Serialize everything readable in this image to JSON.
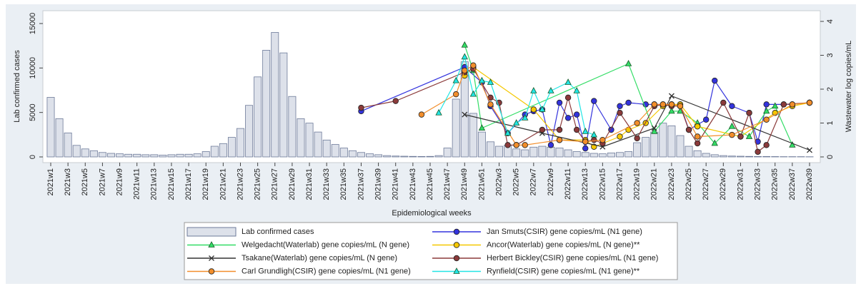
{
  "chart_data": {
    "type": "bar",
    "x_label": "Epidemiological weeks",
    "y_label": "Lab confirmed cases",
    "y2_label": "Wastewater log copies/mL",
    "ylim": [
      0,
      15000
    ],
    "yticks": [
      0,
      5000,
      10000,
      15000
    ],
    "y2lim": [
      0,
      4
    ],
    "y2ticks": [
      0,
      1,
      2,
      3,
      4
    ],
    "categories": [
      "2021w1",
      null,
      "2021w3",
      null,
      "2021w5",
      null,
      "2021w7",
      null,
      "2021w9",
      null,
      "2021w11",
      null,
      "2021w13",
      null,
      "2021w15",
      null,
      "2021w17",
      null,
      "2021w19",
      null,
      "2021w21",
      null,
      "2021w23",
      null,
      "2021w25",
      null,
      "2021w27",
      null,
      "2021w29",
      null,
      "2021w31",
      null,
      "2021w33",
      null,
      "2021w35",
      null,
      "2021w37",
      null,
      "2021w39",
      null,
      "2021w41",
      null,
      "2021w43",
      null,
      "2021w45",
      null,
      "2021w47",
      null,
      "2021w49",
      null,
      "2021w51",
      null,
      "2022w3",
      null,
      "2022w5",
      null,
      "2022w7",
      null,
      "2022w9",
      null,
      "2022w11",
      null,
      "2022w13",
      null,
      "2022w15",
      null,
      "2022w17",
      null,
      "2022w19",
      null,
      "2022w21",
      null,
      "2022w23",
      null,
      "2022w25",
      null,
      "2022w27",
      null,
      "2022w29",
      null,
      "2022w31",
      null,
      "2022w33",
      null,
      "2022w35",
      null,
      "2022w37",
      null,
      "2022w39"
    ],
    "series": [
      {
        "name": "Lab confirmed cases",
        "type": "bar",
        "color": "#dde1ea",
        "values": [
          6700,
          4300,
          2700,
          1300,
          900,
          700,
          500,
          400,
          350,
          300,
          300,
          250,
          250,
          200,
          250,
          300,
          300,
          350,
          600,
          1200,
          1500,
          2200,
          3200,
          5800,
          9000,
          12000,
          14000,
          11700,
          6800,
          4300,
          3800,
          2800,
          1900,
          1400,
          1000,
          700,
          500,
          350,
          250,
          150,
          100,
          80,
          60,
          50,
          60,
          150,
          1000,
          6500,
          10700,
          4900,
          2800,
          1700,
          1200,
          1300,
          900,
          800,
          1100,
          1200,
          1100,
          1000,
          800,
          600,
          500,
          400,
          350,
          450,
          500,
          600,
          1600,
          2200,
          2800,
          3800,
          3500,
          2400,
          1200,
          700,
          400,
          250,
          150,
          100,
          80,
          60,
          50,
          50,
          40,
          30,
          30,
          30,
          20
        ]
      },
      {
        "name": "Jan Smuts(CSIR) gene copies/mL (N1 gene)",
        "type": "line",
        "axis": "y2",
        "marker": "circle",
        "color": "#3333dd",
        "values": [
          null,
          null,
          null,
          null,
          null,
          null,
          null,
          null,
          null,
          null,
          null,
          null,
          null,
          null,
          null,
          null,
          null,
          null,
          null,
          null,
          null,
          null,
          null,
          null,
          null,
          null,
          null,
          null,
          null,
          null,
          null,
          null,
          null,
          null,
          null,
          null,
          1.35,
          null,
          null,
          null,
          null,
          null,
          null,
          null,
          null,
          null,
          null,
          null,
          2.65,
          null,
          2.2,
          1.5,
          null,
          0.7,
          null,
          1.25,
          1.35,
          1.4,
          0.35,
          1.6,
          1.15,
          1.25,
          0.25,
          1.65,
          null,
          0.8,
          1.5,
          1.6,
          null,
          1.55,
          1.55,
          null,
          1.55,
          1.55,
          0.8,
          null,
          1.1,
          2.25,
          null,
          1.5,
          null,
          1.3,
          0.45,
          1.55,
          null,
          1.55,
          1.55,
          null,
          1.6
        ]
      },
      {
        "name": "Welgedacht(Waterlab) gene copies/mL (N gene)",
        "type": "line",
        "axis": "y2",
        "marker": "triangle",
        "color": "#33dd66",
        "values": [
          null,
          null,
          null,
          null,
          null,
          null,
          null,
          null,
          null,
          null,
          null,
          null,
          null,
          null,
          null,
          null,
          null,
          null,
          null,
          null,
          null,
          null,
          null,
          null,
          null,
          null,
          null,
          null,
          null,
          null,
          null,
          null,
          null,
          null,
          null,
          null,
          null,
          null,
          null,
          null,
          null,
          null,
          null,
          null,
          null,
          null,
          null,
          null,
          3.3,
          2.55,
          0.85,
          null,
          null,
          null,
          null,
          null,
          null,
          null,
          null,
          null,
          null,
          null,
          null,
          null,
          null,
          null,
          null,
          2.75,
          null,
          null,
          0.75,
          null,
          1.35,
          1.35,
          null,
          1.0,
          null,
          0.4,
          null,
          0.9,
          null,
          0.6,
          null,
          1.35,
          1.5,
          null,
          0.35,
          null,
          null
        ]
      },
      {
        "name": "Ancor(Waterlab) gene copies/mL (N gene)**",
        "type": "line",
        "axis": "y2",
        "marker": "circle",
        "color": "#f5c800",
        "values": [
          null,
          null,
          null,
          null,
          null,
          null,
          null,
          null,
          null,
          null,
          null,
          null,
          null,
          null,
          null,
          null,
          null,
          null,
          null,
          null,
          null,
          null,
          null,
          null,
          null,
          null,
          null,
          null,
          null,
          null,
          null,
          null,
          null,
          null,
          null,
          null,
          null,
          null,
          null,
          null,
          null,
          null,
          null,
          null,
          null,
          null,
          null,
          null,
          2.4,
          2.65,
          null,
          null,
          null,
          null,
          null,
          null,
          1.4,
          null,
          null,
          0.5,
          null,
          null,
          0.5,
          0.3,
          null,
          null,
          0.6,
          0.8,
          null,
          1.0,
          null,
          1.5,
          1.55,
          1.55,
          null,
          0.9,
          null,
          null,
          null,
          null,
          0.6,
          null,
          null,
          null,
          1.3,
          null,
          1.5,
          null,
          1.6
        ]
      },
      {
        "name": "Tsakane(Waterlab) gene copies/mL (N gene)",
        "type": "line",
        "axis": "y2",
        "marker": "x",
        "color": "#333333",
        "values": [
          null,
          null,
          null,
          null,
          null,
          null,
          null,
          null,
          null,
          null,
          null,
          null,
          null,
          null,
          null,
          null,
          null,
          null,
          null,
          null,
          null,
          null,
          null,
          null,
          null,
          null,
          null,
          null,
          null,
          null,
          null,
          null,
          null,
          null,
          null,
          null,
          null,
          null,
          null,
          null,
          null,
          null,
          null,
          null,
          null,
          null,
          null,
          null,
          1.25,
          null,
          null,
          null,
          null,
          null,
          null,
          null,
          null,
          0.7,
          null,
          null,
          null,
          null,
          null,
          null,
          0.3,
          null,
          null,
          null,
          null,
          null,
          0.85,
          null,
          1.8,
          null,
          null,
          null,
          null,
          null,
          null,
          null,
          null,
          null,
          null,
          null,
          null,
          null,
          null,
          null,
          0.2
        ]
      },
      {
        "name": "Herbert Bickley(CSIR) gene copies/mL (N1 gene)",
        "type": "line",
        "axis": "y2",
        "marker": "circle",
        "color": "#8b3a3a",
        "values": [
          null,
          null,
          null,
          null,
          null,
          null,
          null,
          null,
          null,
          null,
          null,
          null,
          null,
          null,
          null,
          null,
          null,
          null,
          null,
          null,
          null,
          null,
          null,
          null,
          null,
          null,
          null,
          null,
          null,
          null,
          null,
          null,
          null,
          null,
          null,
          null,
          1.45,
          null,
          null,
          null,
          1.65,
          null,
          null,
          null,
          null,
          null,
          null,
          null,
          2.5,
          2.6,
          null,
          1.75,
          1.6,
          0.35,
          0.35,
          null,
          null,
          0.8,
          null,
          0.8,
          1.75,
          0.8,
          0.45,
          0.5,
          0.4,
          null,
          1.3,
          null,
          0.55,
          null,
          1.5,
          1.55,
          1.5,
          1.5,
          0.8,
          0.4,
          null,
          null,
          1.6,
          null,
          0.6,
          1.3,
          0.15,
          0.35,
          null,
          1.55,
          null,
          null,
          1.6
        ]
      },
      {
        "name": "Carl Grundligh(CSIR) gene copies/mL (N1 gene)",
        "type": "line",
        "axis": "y2",
        "marker": "circle",
        "color": "#f28e2b",
        "values": [
          null,
          null,
          null,
          null,
          null,
          null,
          null,
          null,
          null,
          null,
          null,
          null,
          null,
          null,
          null,
          null,
          null,
          null,
          null,
          null,
          null,
          null,
          null,
          null,
          null,
          null,
          null,
          null,
          null,
          null,
          null,
          null,
          null,
          null,
          null,
          null,
          null,
          null,
          null,
          null,
          null,
          null,
          null,
          1.25,
          null,
          null,
          null,
          1.85,
          2.55,
          2.7,
          null,
          1.55,
          null,
          null,
          0.35,
          0.35,
          null,
          null,
          null,
          0.5,
          null,
          null,
          0.45,
          null,
          0.5,
          null,
          null,
          null,
          1.0,
          null,
          1.55,
          1.55,
          1.55,
          1.5,
          null,
          0.6,
          null,
          null,
          null,
          0.65,
          null,
          null,
          null,
          1.1,
          null,
          null,
          1.55,
          null,
          1.6
        ]
      },
      {
        "name": "Rynfield(CSIR) gene copies/mL (N1 gene)**",
        "type": "line",
        "axis": "y2",
        "marker": "triangle",
        "color": "#22e5e5",
        "values": [
          null,
          null,
          null,
          null,
          null,
          null,
          null,
          null,
          null,
          null,
          null,
          null,
          null,
          null,
          null,
          null,
          null,
          null,
          null,
          null,
          null,
          null,
          null,
          null,
          null,
          null,
          null,
          null,
          null,
          null,
          null,
          null,
          null,
          null,
          null,
          null,
          null,
          null,
          null,
          null,
          null,
          null,
          null,
          null,
          null,
          1.3,
          null,
          2.25,
          2.95,
          1.85,
          2.25,
          2.2,
          null,
          0.7,
          1.0,
          1.15,
          1.95,
          1.4,
          1.95,
          null,
          2.2,
          1.95,
          0.75,
          0.65,
          null,
          null,
          null,
          null,
          null,
          null,
          null,
          null,
          null,
          null,
          null,
          null,
          null,
          null,
          null,
          null,
          null,
          null,
          null,
          null,
          null,
          null,
          null,
          null,
          null
        ]
      }
    ]
  }
}
